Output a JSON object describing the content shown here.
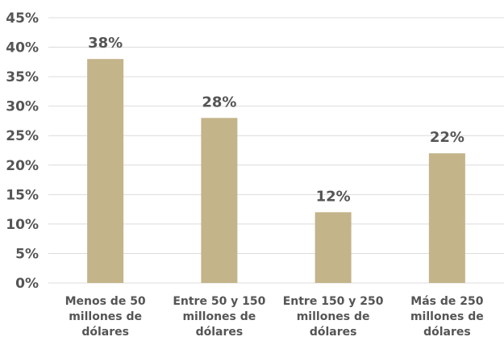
{
  "chart_data": {
    "type": "bar",
    "categories": [
      [
        "Menos de 50",
        "millones de",
        "dólares"
      ],
      [
        "Entre 50 y 150",
        "millones de",
        "dólares"
      ],
      [
        "Entre 150 y 250",
        "millones de",
        "dólares"
      ],
      [
        "Más de 250",
        "millones de",
        "dólares"
      ]
    ],
    "values": [
      38,
      28,
      12,
      22
    ],
    "data_labels": [
      "38%",
      "28%",
      "12%",
      "22%"
    ],
    "y_ticks": [
      0,
      5,
      10,
      15,
      20,
      25,
      30,
      35,
      40,
      45
    ],
    "y_tick_labels": [
      "0%",
      "5%",
      "10%",
      "15%",
      "20%",
      "25%",
      "30%",
      "35%",
      "40%",
      "45%"
    ],
    "ylim": [
      0,
      45
    ],
    "grid": true,
    "legend": "none",
    "colors": {
      "bar": "#c4b48a"
    }
  }
}
